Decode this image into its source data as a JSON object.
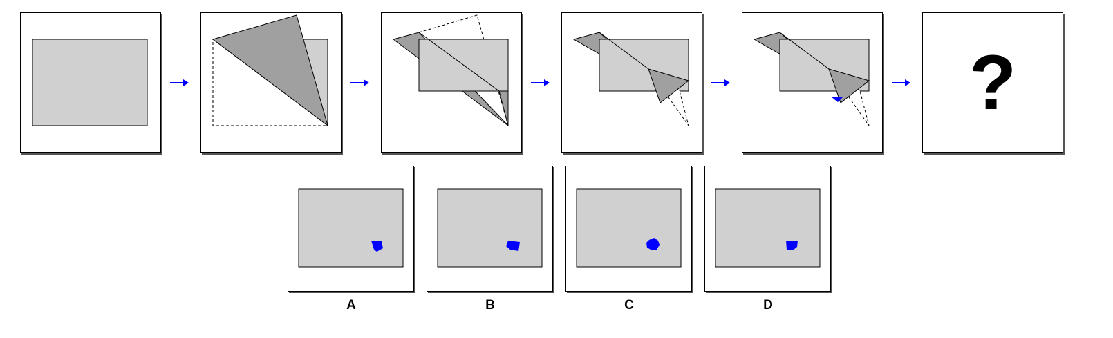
{
  "question_mark": "?",
  "options": [
    {
      "letter": "A"
    },
    {
      "letter": "B"
    },
    {
      "letter": "C"
    },
    {
      "letter": "D"
    }
  ],
  "colors": {
    "paper": "#d0d0d0",
    "folded_paper": "#a0a0a0",
    "hole": "#0000ff",
    "arrow": "#0000ff",
    "outline": "#000000"
  },
  "icons": [
    "arrow-right-icon",
    "question-mark-icon"
  ]
}
